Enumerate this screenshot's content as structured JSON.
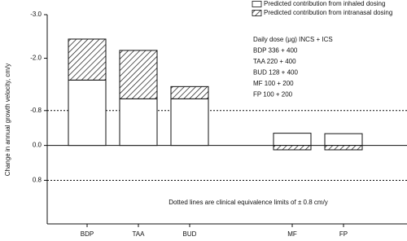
{
  "chart_data": {
    "type": "bar",
    "stacked": true,
    "y_label": "Change in annual growth velocity, cm/y",
    "categories": [
      "BDP",
      "TAA",
      "BUD",
      null,
      "MF",
      "FP"
    ],
    "series": [
      {
        "name": "Predicted contribution from inhaled dosing",
        "color": "#ffffff",
        "hatch": false,
        "values": [
          -1.5,
          -1.07,
          -1.07,
          null,
          -0.28,
          -0.27
        ]
      },
      {
        "name": "Predicted contribution from intranasal dosing",
        "color": "#ffffff",
        "hatch": true,
        "values": [
          -0.94,
          -1.11,
          -0.28,
          null,
          0.1,
          0.1
        ]
      }
    ],
    "ylim": [
      1.8,
      -3.0
    ],
    "yticks": [
      {
        "value": -3.0,
        "label": "-3.0"
      },
      {
        "value": -2.0,
        "label": "-2.0"
      },
      -0.8,
      {
        "value": 0.0,
        "label": "0.0"
      },
      0.8
    ],
    "reference_lines": [
      -0.8,
      0.8
    ],
    "legend": "top-right",
    "annotations": [
      "Daily dose (μg) INCS + ICS",
      "BDP 336 + 400",
      "TAA 220 + 400",
      "BUD 128 + 400",
      "MF 100 + 200",
      "FP 100 + 200"
    ],
    "note": "Dotted lines are clinical equivalence limits of ± 0.8 cm/y"
  }
}
